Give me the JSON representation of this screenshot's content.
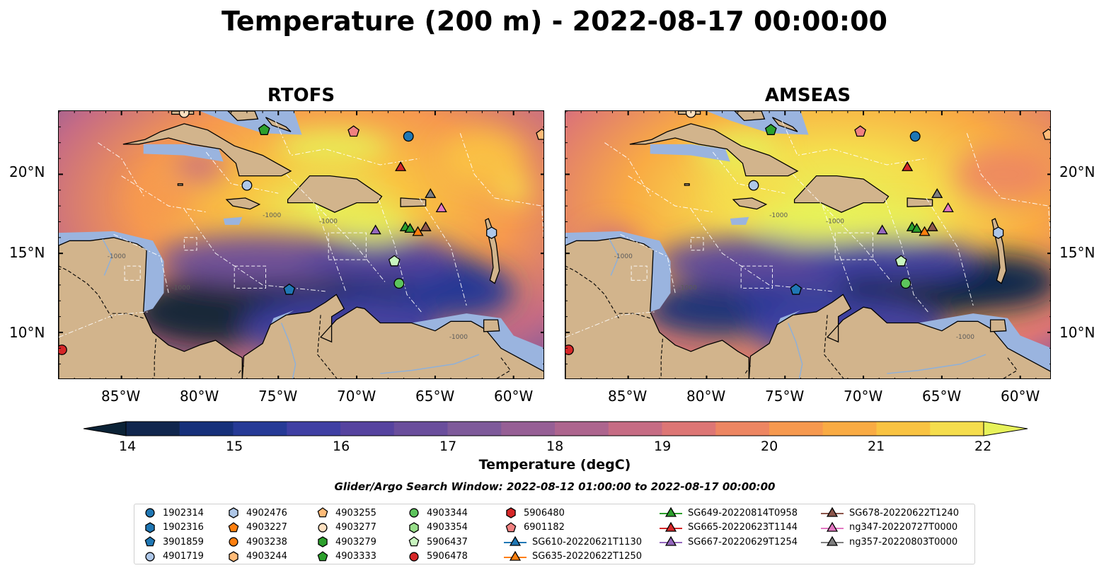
{
  "title": "Temperature (200 m) - 2022-08-17 00:00:00",
  "panels": [
    {
      "title": "RTOFS",
      "model": "rtofs"
    },
    {
      "title": "AMSEAS",
      "model": "amseas"
    }
  ],
  "lon_ticks": [
    "85°W",
    "80°W",
    "75°W",
    "70°W",
    "65°W",
    "60°W"
  ],
  "lat_ticks_left": [
    "20°N",
    "15°N",
    "10°N"
  ],
  "lat_ticks_right": [
    "20°N",
    "15°N",
    "10°N"
  ],
  "map_extent": {
    "lon_min": -89,
    "lon_max": -58,
    "lat_min": 7,
    "lat_max": 24
  },
  "bathy_labels": [
    "-1000"
  ],
  "colorbar": {
    "label": "Temperature (degC)",
    "ticks": [
      "14",
      "15",
      "16",
      "17",
      "18",
      "19",
      "20",
      "21",
      "22"
    ],
    "min": 14,
    "max": 22,
    "step": 0.5,
    "extend": "both",
    "colors": [
      "#0b2236",
      "#10264d",
      "#16307a",
      "#263a96",
      "#3f3fa3",
      "#56439f",
      "#6a4e9c",
      "#7e5a9a",
      "#965f95",
      "#ad658e",
      "#c66c84",
      "#dd7675",
      "#ed8662",
      "#f6994f",
      "#f9ab44",
      "#f9c342",
      "#f5dd4d",
      "#e7f25a"
    ],
    "ocean_shallow": "#9ab4df",
    "land": "#d2b48c"
  },
  "search_window": "Glider/Argo Search Window: 2022-08-12 01:00:00 to 2022-08-17 00:00:00",
  "legend": {
    "columns": [
      [
        {
          "label": "1902314",
          "shape": "circle",
          "color": "#1f77b4"
        },
        {
          "label": "1902316",
          "shape": "hexagon",
          "color": "#1f77b4"
        },
        {
          "label": "3901859",
          "shape": "pentagon",
          "color": "#1f77b4"
        },
        {
          "label": "4901719",
          "shape": "circle",
          "color": "#aec7e8"
        }
      ],
      [
        {
          "label": "4902476",
          "shape": "hexagon",
          "color": "#aec7e8"
        },
        {
          "label": "4903227",
          "shape": "pentagon",
          "color": "#ff7f0e"
        },
        {
          "label": "4903238",
          "shape": "circle",
          "color": "#ff7f0e"
        },
        {
          "label": "4903244",
          "shape": "hexagon",
          "color": "#ffbb78"
        }
      ],
      [
        {
          "label": "4903255",
          "shape": "pentagon",
          "color": "#ffbb78"
        },
        {
          "label": "4903277",
          "shape": "circle",
          "color": "#ffe0c0"
        },
        {
          "label": "4903279",
          "shape": "hexagon",
          "color": "#2ca02c"
        },
        {
          "label": "4903333",
          "shape": "pentagon",
          "color": "#2ca02c"
        }
      ],
      [
        {
          "label": "4903344",
          "shape": "circle",
          "color": "#5cc45c"
        },
        {
          "label": "4903354",
          "shape": "hexagon",
          "color": "#98df8a"
        },
        {
          "label": "5906437",
          "shape": "pentagon",
          "color": "#c8f5bf"
        },
        {
          "label": "5906478",
          "shape": "circle",
          "color": "#d62728"
        }
      ],
      [
        {
          "label": "5906480",
          "shape": "hexagon",
          "color": "#d62728"
        },
        {
          "label": "6901182",
          "shape": "pentagon",
          "color": "#f08080"
        },
        {
          "label": "SG610-20220621T1130",
          "shape": "triangle-line",
          "color": "#1f77b4"
        },
        {
          "label": "SG635-20220622T1250",
          "shape": "triangle-line",
          "color": "#ff7f0e"
        }
      ],
      [
        {
          "label": "SG649-20220814T0958",
          "shape": "triangle-line",
          "color": "#2ca02c"
        },
        {
          "label": "SG665-20220623T1144",
          "shape": "triangle-line",
          "color": "#d62728"
        },
        {
          "label": "SG667-20220629T1254",
          "shape": "triangle-line",
          "color": "#9467bd"
        }
      ],
      [
        {
          "label": "SG678-20220622T1240",
          "shape": "triangle-line",
          "color": "#8c564b"
        },
        {
          "label": "ng347-20220727T0000",
          "shape": "triangle-line",
          "color": "#e377c2"
        },
        {
          "label": "ng357-20220803T0000",
          "shape": "triangle-line",
          "color": "#7f7f7f"
        }
      ]
    ]
  },
  "markers": [
    {
      "lon": -66.7,
      "lat": 22.4,
      "shape": "circle",
      "color": "#1f77b4"
    },
    {
      "lon": -77.0,
      "lat": 19.3,
      "shape": "circle",
      "color": "#aec7e8"
    },
    {
      "lon": -74.3,
      "lat": 12.7,
      "shape": "pentagon",
      "color": "#1f77b4"
    },
    {
      "lon": -67.6,
      "lat": 14.5,
      "shape": "pentagon",
      "color": "#c8f5bf"
    },
    {
      "lon": -67.3,
      "lat": 13.1,
      "shape": "circle",
      "color": "#5cc45c"
    },
    {
      "lon": -75.9,
      "lat": 22.8,
      "shape": "pentagon",
      "color": "#2ca02c"
    },
    {
      "lon": -70.2,
      "lat": 22.7,
      "shape": "pentagon",
      "color": "#f08080"
    },
    {
      "lon": -88.8,
      "lat": 8.9,
      "shape": "circle",
      "color": "#d62728"
    },
    {
      "lon": -58.2,
      "lat": 22.5,
      "shape": "pentagon",
      "color": "#ffbb78"
    },
    {
      "lon": -81.0,
      "lat": 23.9,
      "shape": "circle",
      "color": "#ffe0c0"
    },
    {
      "lon": -61.4,
      "lat": 16.3,
      "shape": "hexagon",
      "color": "#aec7e8"
    },
    {
      "lon": -67.2,
      "lat": 20.5,
      "shape": "triangle",
      "color": "#d62728"
    },
    {
      "lon": -68.8,
      "lat": 16.5,
      "shape": "triangle",
      "color": "#9467bd"
    },
    {
      "lon": -66.9,
      "lat": 16.7,
      "shape": "triangle",
      "color": "#2ca02c"
    },
    {
      "lon": -66.6,
      "lat": 16.6,
      "shape": "triangle",
      "color": "#2ca02c"
    },
    {
      "lon": -66.1,
      "lat": 16.4,
      "shape": "triangle",
      "color": "#ff7f0e"
    },
    {
      "lon": -65.6,
      "lat": 16.7,
      "shape": "triangle",
      "color": "#8c564b"
    },
    {
      "lon": -65.3,
      "lat": 18.8,
      "shape": "triangle",
      "color": "#7f7f7f"
    },
    {
      "lon": -64.6,
      "lat": 17.9,
      "shape": "triangle",
      "color": "#e377c2"
    }
  ]
}
